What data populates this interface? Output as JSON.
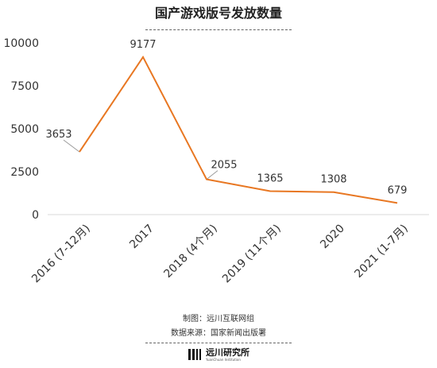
{
  "title": "国产游戏版号发放数量",
  "chart_data": {
    "type": "line",
    "title": "国产游戏版号发放数量",
    "categories": [
      "2016 (7-12月)",
      "2017",
      "2018 (4个月)",
      "2019 (11个月)",
      "2020",
      "2021 (1-7月)"
    ],
    "values": [
      3653,
      9177,
      2055,
      1365,
      1308,
      679
    ],
    "data_labels": [
      "3653",
      "9177",
      "2055",
      "1365",
      "1308",
      "679"
    ],
    "ylim": [
      0,
      10000
    ],
    "y_ticks": [
      0,
      2500,
      5000,
      7500,
      10000
    ],
    "y_tick_labels": [
      "0",
      "2500",
      "5000",
      "7500",
      "10000"
    ],
    "xlabel": "",
    "ylabel": "",
    "grid": false,
    "line_color": "#E87722"
  },
  "footer": {
    "credit": "制图：远川互联网组",
    "source": "数据来源：国家新闻出版署"
  },
  "brand": {
    "name": "远川研究所",
    "sub": "YuanChuan Institution"
  }
}
